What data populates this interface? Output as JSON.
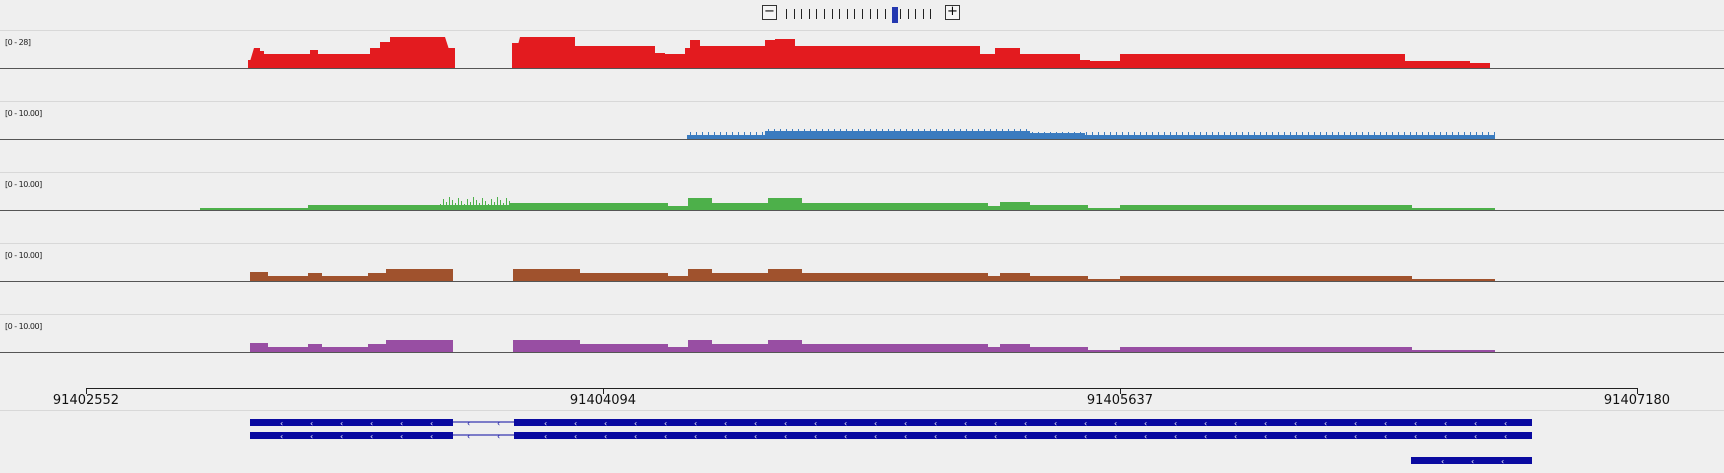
{
  "zoom": {
    "minus_label": "−",
    "plus_label": "+",
    "levels": 20,
    "current_level": 14
  },
  "colors": {
    "track1": "#e31b1f",
    "track2": "#3a7bbf",
    "track3": "#4db04a",
    "track4": "#a0522d",
    "track5": "#984ea3",
    "gene": "#0a0aa0"
  },
  "tracks": [
    {
      "name": "coverage-track-1",
      "range_label": "[0 - 28]",
      "color": "#e31b1f",
      "scale_max": 28
    },
    {
      "name": "coverage-track-2",
      "range_label": "[0 - 10.00]",
      "color": "#3a7bbf",
      "scale_max": 10
    },
    {
      "name": "coverage-track-3",
      "range_label": "[0 - 10.00]",
      "color": "#4db04a",
      "scale_max": 10
    },
    {
      "name": "coverage-track-4",
      "range_label": "[0 - 10.00]",
      "color": "#a0522d",
      "scale_max": 10
    },
    {
      "name": "coverage-track-5",
      "range_label": "[0 - 10.00]",
      "color": "#984ea3",
      "scale_max": 10
    }
  ],
  "ruler": {
    "ticks": [
      "91402552",
      "91404094",
      "91405637",
      "91407180"
    ]
  }
}
